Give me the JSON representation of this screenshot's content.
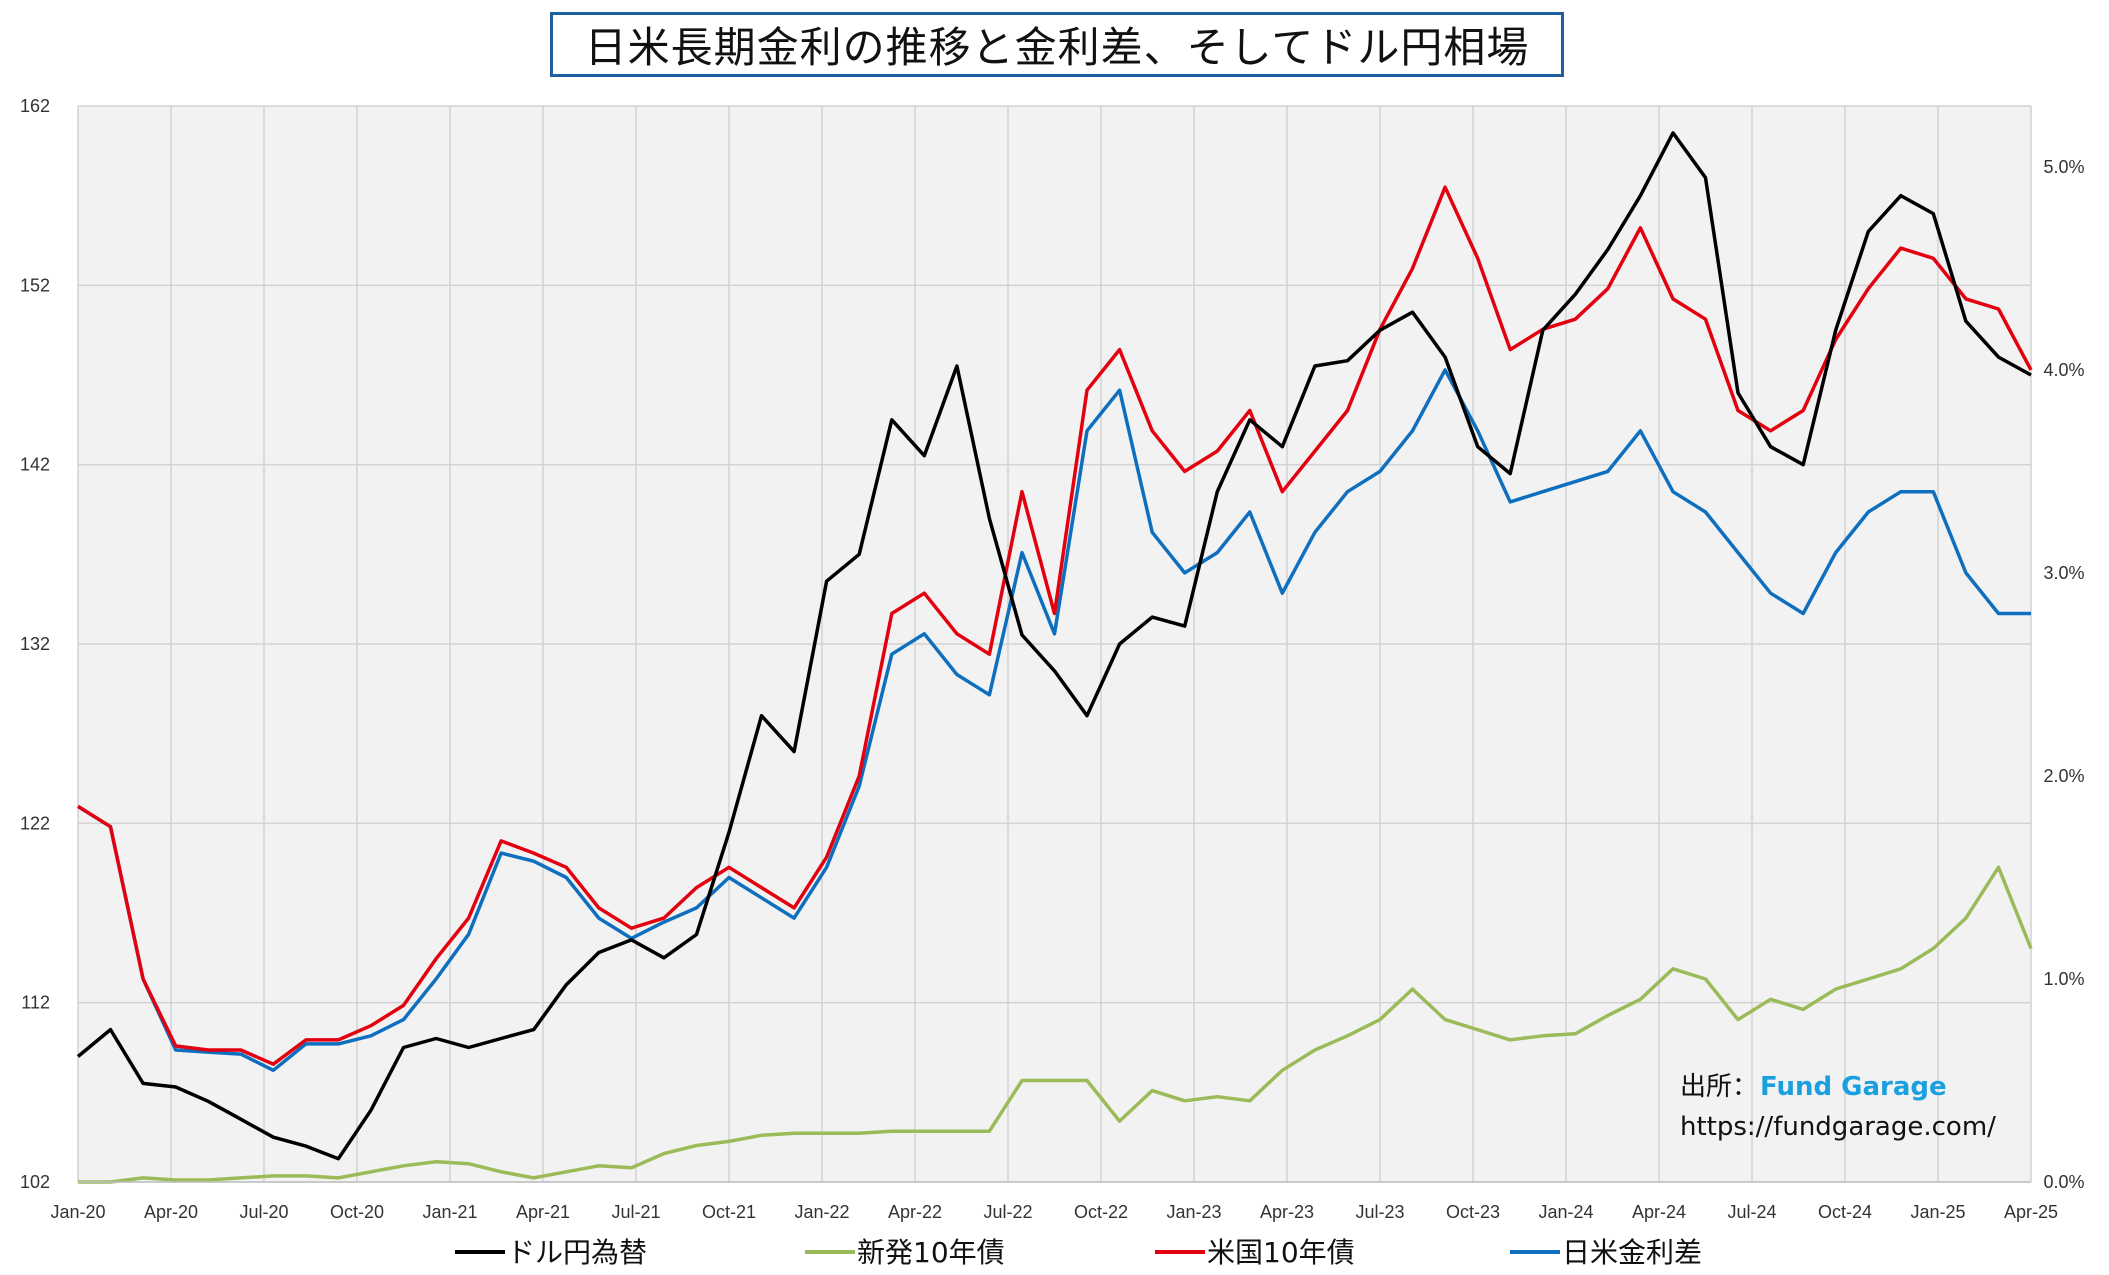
{
  "chart_data": {
    "type": "line",
    "title": "日米長期金利の推移と金利差、そしてドル円相場",
    "x_ticks": [
      "Jan-20",
      "Apr-20",
      "Jul-20",
      "Oct-20",
      "Jan-21",
      "Apr-21",
      "Jul-21",
      "Oct-21",
      "Jan-22",
      "Apr-22",
      "Jul-22",
      "Oct-22",
      "Jan-23",
      "Apr-23",
      "Jul-23",
      "Oct-23",
      "Jan-24",
      "Apr-24",
      "Jul-24",
      "Oct-24",
      "Jan-25",
      "Apr-25"
    ],
    "y_left": {
      "ylim": [
        102,
        162
      ],
      "ticks": [
        "102",
        "112",
        "122",
        "132",
        "142",
        "152",
        "162"
      ]
    },
    "y_right": {
      "ylim": [
        0.0,
        5.3
      ],
      "ticks": [
        "0.0%",
        "1.0%",
        "2.0%",
        "3.0%",
        "4.0%",
        "5.0%"
      ]
    },
    "grid": true,
    "legend_position": "bottom",
    "series": [
      {
        "name": "ドル円為替",
        "axis": "left",
        "color": "#000000",
        "values": [
          109.0,
          110.5,
          107.5,
          107.3,
          106.5,
          105.5,
          104.5,
          104.0,
          103.3,
          106.0,
          109.5,
          110.0,
          109.5,
          110.0,
          110.5,
          113.0,
          114.8,
          115.5,
          114.5,
          115.8,
          121.5,
          128.0,
          126.0,
          135.5,
          137.0,
          144.5,
          142.5,
          147.5,
          139.0,
          132.5,
          130.5,
          128.0,
          132.0,
          133.5,
          133.0,
          140.5,
          144.5,
          143.0,
          147.5,
          147.8,
          149.5,
          150.5,
          148.0,
          143.0,
          141.5,
          149.5,
          151.5,
          154.0,
          157.0,
          160.5,
          158.0,
          146.0,
          143.0,
          142.0,
          149.5,
          155.0,
          157.0,
          156.0,
          150.0,
          148.0,
          147.0
        ]
      },
      {
        "name": "新発10年債",
        "axis": "right",
        "color": "#9bbb59",
        "values": [
          0.0,
          0.0,
          0.02,
          0.01,
          0.01,
          0.02,
          0.03,
          0.03,
          0.02,
          0.05,
          0.08,
          0.1,
          0.09,
          0.05,
          0.02,
          0.05,
          0.08,
          0.07,
          0.14,
          0.18,
          0.2,
          0.23,
          0.24,
          0.24,
          0.24,
          0.25,
          0.25,
          0.25,
          0.25,
          0.5,
          0.5,
          0.5,
          0.3,
          0.45,
          0.4,
          0.42,
          0.4,
          0.55,
          0.65,
          0.72,
          0.8,
          0.95,
          0.8,
          0.75,
          0.7,
          0.72,
          0.73,
          0.82,
          0.9,
          1.05,
          1.0,
          0.8,
          0.9,
          0.85,
          0.95,
          1.0,
          1.05,
          1.15,
          1.3,
          1.55,
          1.15
        ]
      },
      {
        "name": "米国10年債",
        "axis": "right",
        "color": "#e3000f",
        "values": [
          1.85,
          1.75,
          1.0,
          0.67,
          0.65,
          0.65,
          0.58,
          0.7,
          0.7,
          0.77,
          0.87,
          1.1,
          1.3,
          1.68,
          1.62,
          1.55,
          1.35,
          1.25,
          1.3,
          1.45,
          1.55,
          1.45,
          1.35,
          1.6,
          2.0,
          2.8,
          2.9,
          2.7,
          2.6,
          3.4,
          2.8,
          3.9,
          4.1,
          3.7,
          3.5,
          3.6,
          3.8,
          3.4,
          3.6,
          3.8,
          4.2,
          4.5,
          4.9,
          4.55,
          4.1,
          4.2,
          4.25,
          4.4,
          4.7,
          4.35,
          4.25,
          3.8,
          3.7,
          3.8,
          4.15,
          4.4,
          4.6,
          4.55,
          4.35,
          4.3,
          4.0
        ]
      },
      {
        "name": "日米金利差",
        "axis": "right",
        "color": "#0f6fbf",
        "values": [
          1.85,
          1.75,
          1.0,
          0.65,
          0.64,
          0.63,
          0.55,
          0.68,
          0.68,
          0.72,
          0.8,
          1.0,
          1.22,
          1.62,
          1.58,
          1.5,
          1.3,
          1.2,
          1.28,
          1.35,
          1.5,
          1.4,
          1.3,
          1.55,
          1.95,
          2.6,
          2.7,
          2.5,
          2.4,
          3.1,
          2.7,
          3.7,
          3.9,
          3.2,
          3.0,
          3.1,
          3.3,
          2.9,
          3.2,
          3.4,
          3.5,
          3.7,
          4.0,
          3.7,
          3.35,
          3.4,
          3.45,
          3.5,
          3.7,
          3.4,
          3.3,
          3.1,
          2.9,
          2.8,
          3.1,
          3.3,
          3.4,
          3.4,
          3.0,
          2.8,
          2.8
        ]
      }
    ]
  },
  "source": {
    "label": "出所：",
    "name": "Fund Garage",
    "url": "https://fundgarage.com/"
  }
}
